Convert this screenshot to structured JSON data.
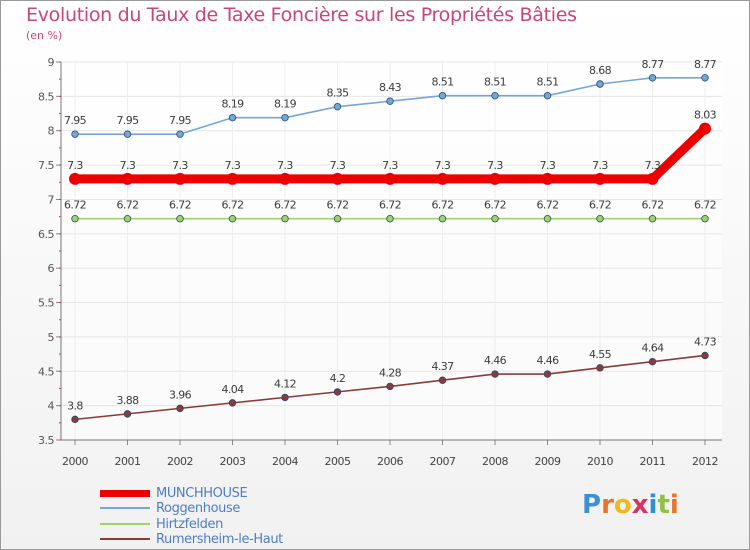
{
  "chart_data": {
    "type": "line",
    "title": "Evolution du Taux de Taxe Foncière sur les Propriétés Bâties",
    "ylabel": "(en %)",
    "xlabel": "",
    "categories": [
      "2000",
      "2001",
      "2002",
      "2003",
      "2004",
      "2005",
      "2006",
      "2007",
      "2008",
      "2009",
      "2010",
      "2011",
      "2012"
    ],
    "ylim": [
      3.5,
      9
    ],
    "yticks": [
      3.5,
      4,
      4.5,
      5,
      5.5,
      6,
      6.5,
      7,
      7.5,
      8,
      8.5,
      9
    ],
    "ytick_labels": [
      "3.5",
      "4",
      "4.5",
      "5",
      "5.5",
      "6",
      "6.5",
      "7",
      "7.5",
      "8",
      "8.5",
      "9"
    ],
    "grid": true,
    "legend_position": "bottom-left",
    "series": [
      {
        "name": "MUNCHHOUSE",
        "color": "#ee0000",
        "values": [
          7.3,
          7.3,
          7.3,
          7.3,
          7.3,
          7.3,
          7.3,
          7.3,
          7.3,
          7.3,
          7.3,
          7.3,
          8.03
        ],
        "labels": [
          "7.3",
          "7.3",
          "7.3",
          "7.3",
          "7.3",
          "7.3",
          "7.3",
          "7.3",
          "7.3",
          "7.3",
          "7.3",
          "7.3",
          "8.03"
        ]
      },
      {
        "name": "Roggenhouse",
        "color": "#74a6d8",
        "values": [
          7.95,
          7.95,
          7.95,
          8.19,
          8.19,
          8.35,
          8.43,
          8.51,
          8.51,
          8.51,
          8.68,
          8.77,
          8.77
        ],
        "labels": [
          "7.95",
          "7.95",
          "7.95",
          "8.19",
          "8.19",
          "8.35",
          "8.43",
          "8.51",
          "8.51",
          "8.51",
          "8.68",
          "8.77",
          "8.77"
        ]
      },
      {
        "name": "Hirtzfelden",
        "color": "#9ed36a",
        "values": [
          6.72,
          6.72,
          6.72,
          6.72,
          6.72,
          6.72,
          6.72,
          6.72,
          6.72,
          6.72,
          6.72,
          6.72,
          6.72
        ],
        "labels": [
          "6.72",
          "6.72",
          "6.72",
          "6.72",
          "6.72",
          "6.72",
          "6.72",
          "6.72",
          "6.72",
          "6.72",
          "6.72",
          "6.72",
          "6.72"
        ]
      },
      {
        "name": "Rumersheim-le-Haut",
        "color": "#8b3a3a",
        "values": [
          3.8,
          3.88,
          3.96,
          4.04,
          4.12,
          4.2,
          4.28,
          4.37,
          4.46,
          4.46,
          4.55,
          4.64,
          4.73
        ],
        "labels": [
          "3.8",
          "3.88",
          "3.96",
          "4.04",
          "4.12",
          "4.2",
          "4.28",
          "4.37",
          "4.46",
          "4.46",
          "4.55",
          "4.64",
          "4.73"
        ]
      }
    ]
  },
  "brand": {
    "letters": [
      "P",
      "r",
      "o",
      "x",
      "i",
      "t",
      "i"
    ],
    "colors": [
      "#3d8fd4",
      "#e8742a",
      "#f0b81b",
      "#d8345f",
      "#2f8fd6",
      "#8fc23f",
      "#e8742a"
    ]
  }
}
